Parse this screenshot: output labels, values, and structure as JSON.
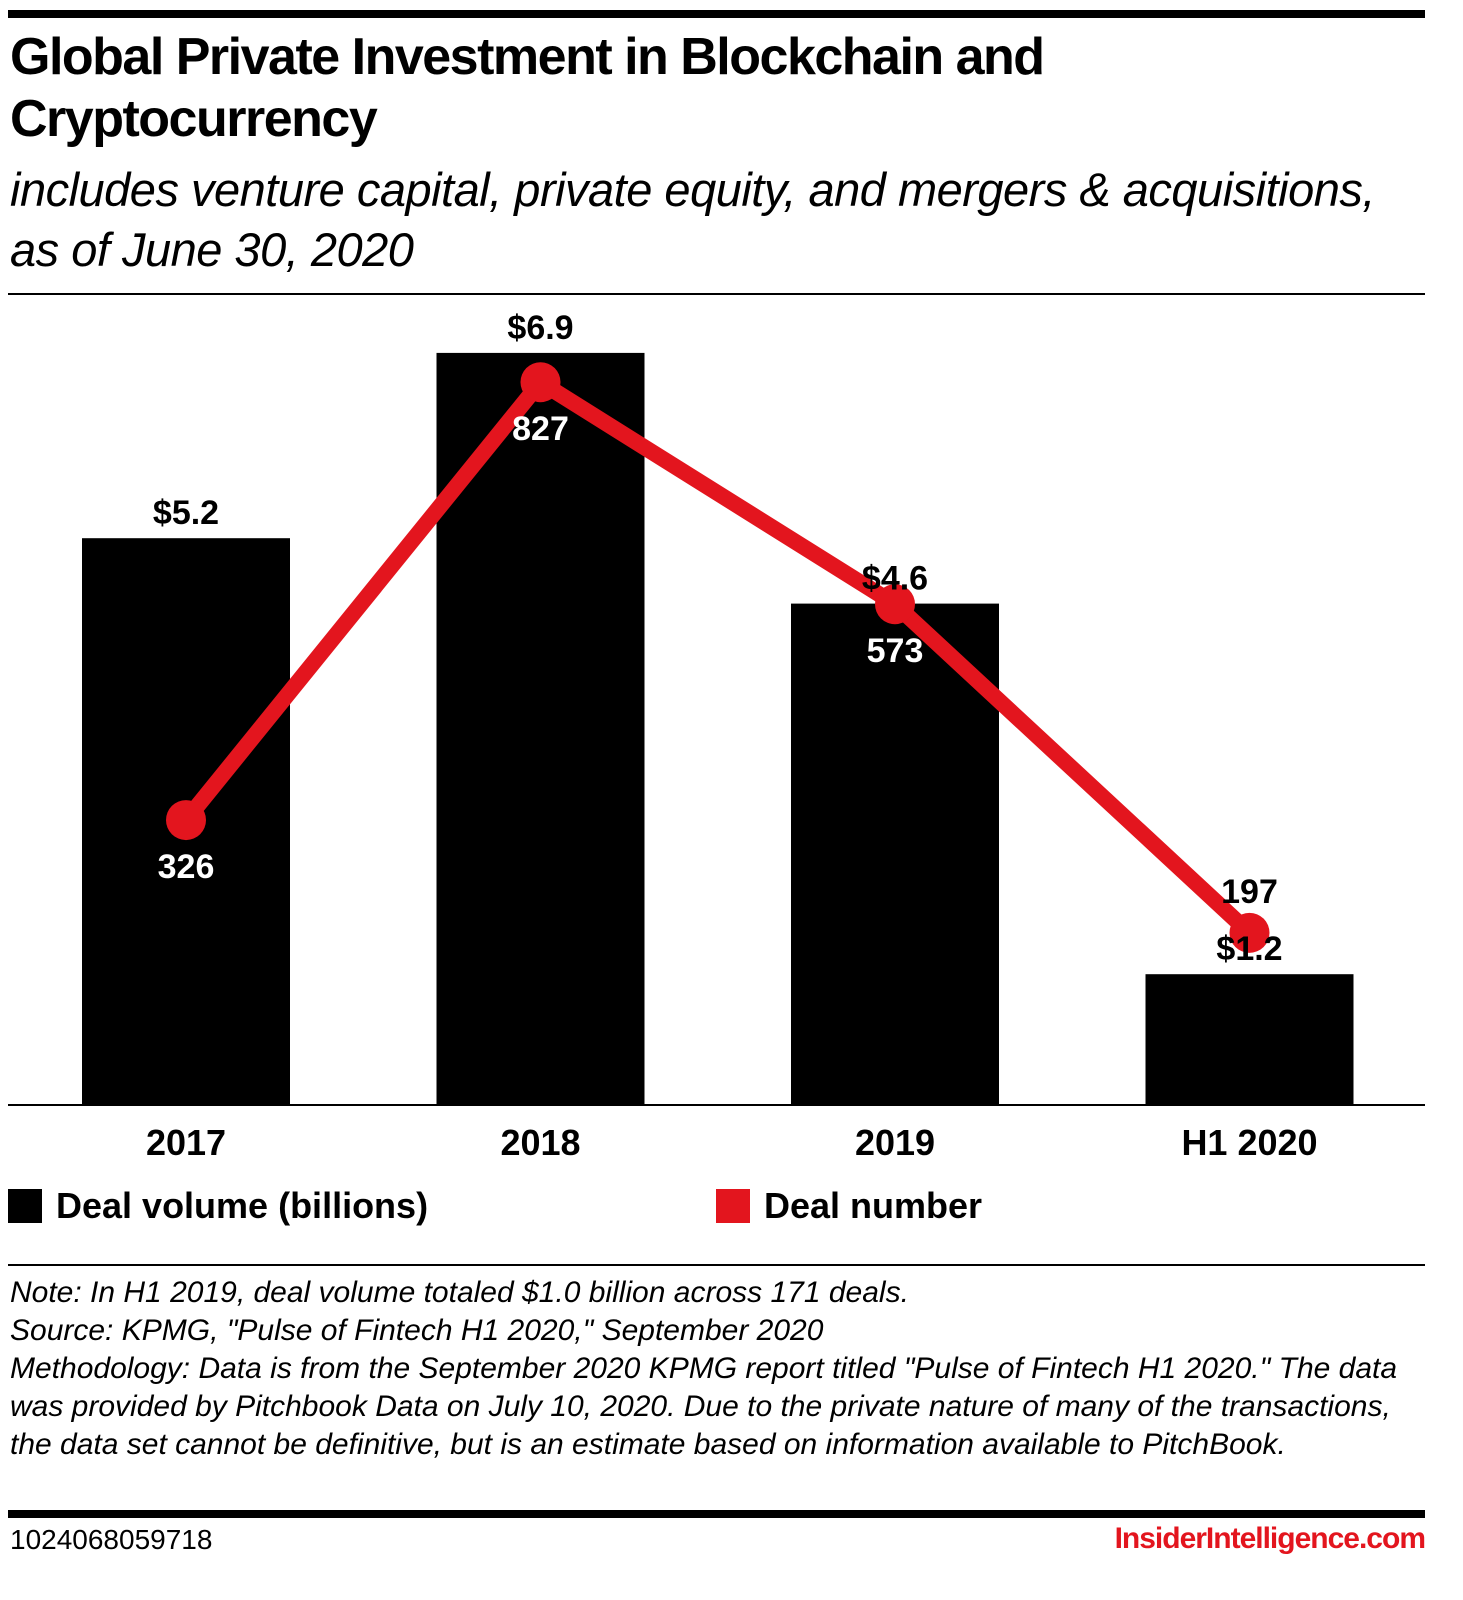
{
  "title": "Global Private Investment in Blockchain and Cryptocurrency",
  "subtitle": "includes venture capital, private equity, and mergers & acquisitions, as of June 30, 2020",
  "colors": {
    "bar": "#000000",
    "line": "#e3151e",
    "brand": "#e3151e"
  },
  "chart_data": {
    "type": "bar+line",
    "categories": [
      "2017",
      "2018",
      "2019",
      "H1 2020"
    ],
    "series": [
      {
        "name": "Deal volume (billions)",
        "type": "bar",
        "values": [
          5.2,
          6.9,
          4.6,
          1.2
        ],
        "labels": [
          "$5.2",
          "$6.9",
          "$4.6",
          "$1.2"
        ],
        "color": "#000000"
      },
      {
        "name": "Deal number",
        "type": "line",
        "values": [
          326,
          827,
          573,
          197
        ],
        "labels": [
          "326",
          "827",
          "573",
          "197"
        ],
        "color": "#e3151e"
      }
    ],
    "y_axis_visible": false,
    "grid": false,
    "legend_placement": "bottom"
  },
  "notes": [
    "Note: In H1 2019, deal volume totaled $1.0 billion across 171 deals.",
    "Source: KPMG, \"Pulse of Fintech H1 2020,\" September 2020",
    "Methodology: Data is from the September 2020 KPMG report titled \"Pulse of Fintech H1 2020.\" The data was provided by Pitchbook Data on July 10, 2020. Due to the private nature of many of the transactions, the data set cannot be definitive, but is an estimate based on information available to PitchBook."
  ],
  "footer": {
    "id": "1024068059718",
    "brand": "InsiderIntelligence.com"
  }
}
